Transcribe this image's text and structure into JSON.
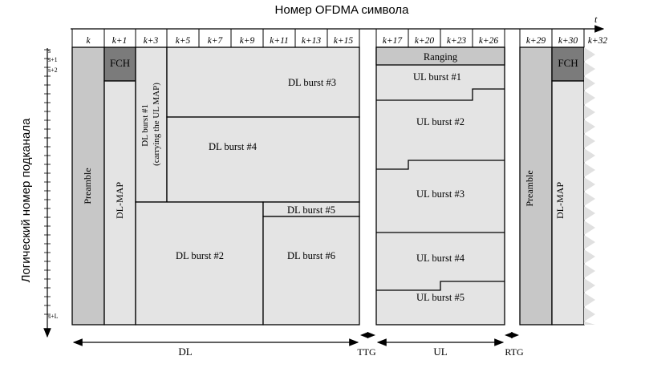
{
  "title": "Номер OFDMA символа",
  "y_axis_label": "Логический номер подканала",
  "time_axis_label": "t",
  "symbol_ticks": [
    "k",
    "k+1",
    "k+3",
    "k+5",
    "k+7",
    "k+9",
    "k+11",
    "k+13",
    "k+15",
    "k+17",
    "k+20",
    "k+23",
    "k+26",
    "k+29",
    "k+30",
    "k+32"
  ],
  "subchannel_ticks": [
    "s",
    "s+1",
    "s+2",
    "s+L"
  ],
  "regions": {
    "preamble_1": "Preamble",
    "fch_1": "FCH",
    "dl_map_1": "DL-MAP",
    "ul_map_burst": "DL burst #1\n(carrying the UL MAP)",
    "dl_burst_3": "DL burst #3",
    "dl_burst_4": "DL burst #4",
    "dl_burst_5": "DL burst #5",
    "dl_burst_2": "DL burst #2",
    "dl_burst_6": "DL burst #6",
    "ranging": "Ranging",
    "ul_burst_1": "UL burst #1",
    "ul_burst_2": "UL burst #2",
    "ul_burst_3": "UL burst #3",
    "ul_burst_4": "UL burst #4",
    "ul_burst_5": "UL burst #5",
    "preamble_2": "Preamble",
    "fch_2": "FCH",
    "dl_map_2": "DL-MAP"
  },
  "bottom_labels": {
    "dl": "DL",
    "ttg": "TTG",
    "ul": "UL",
    "rtg": "RTG"
  }
}
